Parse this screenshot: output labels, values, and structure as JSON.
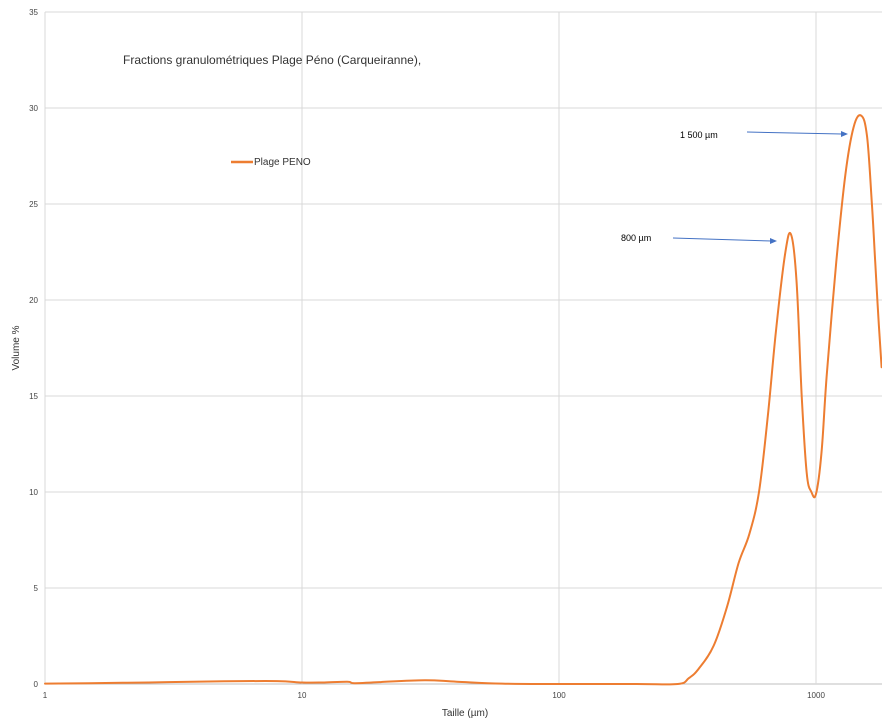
{
  "chart_data": {
    "type": "line",
    "title": "Fractions granulométriques Plage Péno (Carqueiranne),",
    "xlabel": "Taille (µm)",
    "ylabel": "Volume %",
    "xscale": "log",
    "xlim": [
      1,
      1800
    ],
    "ylim": [
      0,
      35
    ],
    "xticks": [
      1,
      10,
      100,
      1000
    ],
    "xtick_labels": [
      "1",
      "10",
      "100",
      "1000"
    ],
    "yticks": [
      0,
      5,
      10,
      15,
      20,
      25,
      30,
      35
    ],
    "grid": true,
    "legend": "upper-left",
    "series": [
      {
        "name": "Plage PENO",
        "color": "#ED7D31",
        "x": [
          1,
          2,
          3,
          5,
          8,
          10,
          12,
          15,
          16,
          20,
          30,
          40,
          60,
          100,
          200,
          290,
          320,
          350,
          400,
          450,
          500,
          550,
          600,
          650,
          700,
          760,
          800,
          840,
          880,
          920,
          960,
          1000,
          1050,
          1100,
          1200,
          1300,
          1400,
          1500,
          1580,
          1650,
          1700,
          1750,
          1800
        ],
        "y": [
          0.02,
          0.06,
          0.1,
          0.14,
          0.15,
          0.08,
          0.08,
          0.12,
          0.04,
          0.1,
          0.2,
          0.12,
          0.02,
          0.0,
          0.0,
          0.0,
          0.3,
          0.8,
          2.0,
          4.0,
          6.3,
          7.8,
          10.0,
          14.0,
          18.5,
          22.5,
          23.4,
          21.0,
          15.0,
          11.0,
          10.0,
          9.9,
          12.0,
          16.0,
          22.0,
          26.5,
          29.0,
          29.6,
          28.5,
          25.0,
          22.0,
          19.0,
          16.5
        ]
      }
    ],
    "annotations": [
      {
        "text": "800 µm",
        "x": 800,
        "y": 23.1
      },
      {
        "text": "1 500 µm",
        "x": 1500,
        "y": 28.6
      }
    ]
  }
}
